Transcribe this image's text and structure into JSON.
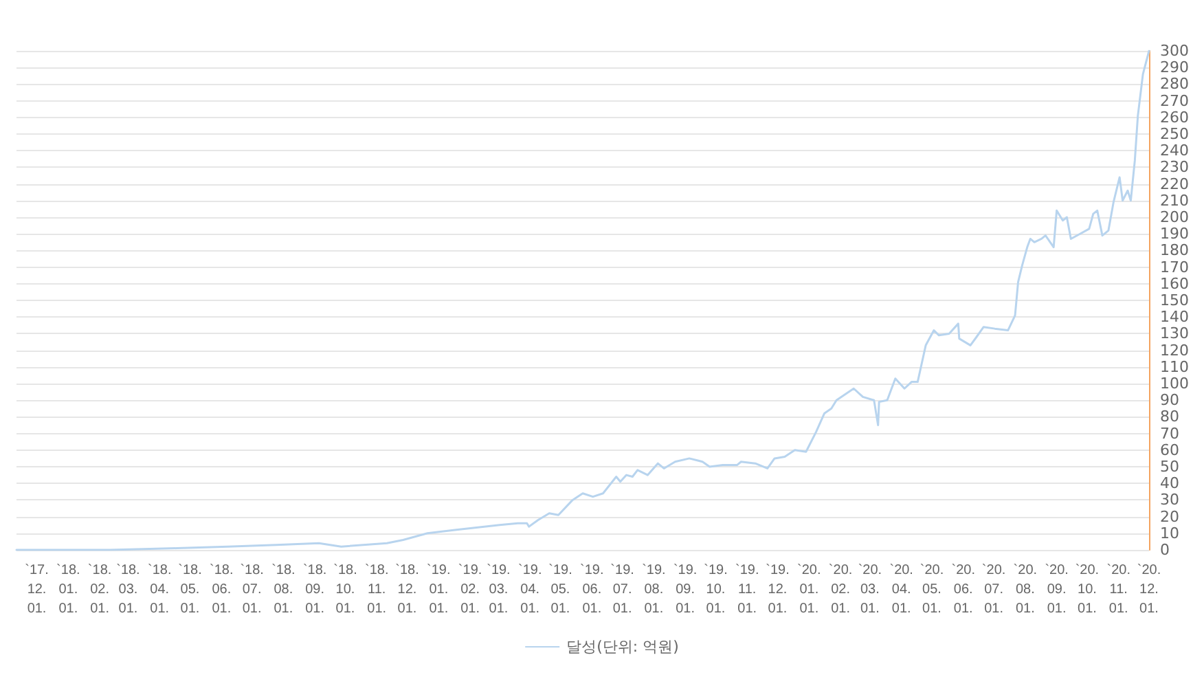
{
  "chart_data": {
    "type": "line",
    "legend": "bottom",
    "grid": "y",
    "marker": "none",
    "line_style": "solid",
    "xlim": [
      "2017-11-11",
      "2020-12-01"
    ],
    "xticks": [
      {
        "value": "2017-12-01",
        "label": "`17.\n12.\n01."
      },
      {
        "value": "2018-01-01",
        "label": "`18.\n01.\n01."
      },
      {
        "value": "2018-02-01",
        "label": "`18.\n02.\n01."
      },
      {
        "value": "2018-03-01",
        "label": "`18.\n03.\n01."
      },
      {
        "value": "2018-04-01",
        "label": "`18.\n04.\n01."
      },
      {
        "value": "2018-05-01",
        "label": "`18.\n05.\n01."
      },
      {
        "value": "2018-06-01",
        "label": "`18.\n06.\n01."
      },
      {
        "value": "2018-07-01",
        "label": "`18.\n07.\n01."
      },
      {
        "value": "2018-08-01",
        "label": "`18.\n08.\n01."
      },
      {
        "value": "2018-09-01",
        "label": "`18.\n09.\n01."
      },
      {
        "value": "2018-10-01",
        "label": "`18.\n10.\n01."
      },
      {
        "value": "2018-11-01",
        "label": "`18.\n11.\n01."
      },
      {
        "value": "2018-12-01",
        "label": "`18.\n12.\n01."
      },
      {
        "value": "2019-01-01",
        "label": "`19.\n01.\n01."
      },
      {
        "value": "2019-02-01",
        "label": "`19.\n02.\n01."
      },
      {
        "value": "2019-03-01",
        "label": "`19.\n03.\n01."
      },
      {
        "value": "2019-04-01",
        "label": "`19.\n04.\n01."
      },
      {
        "value": "2019-05-01",
        "label": "`19.\n05.\n01."
      },
      {
        "value": "2019-06-01",
        "label": "`19.\n06.\n01."
      },
      {
        "value": "2019-07-01",
        "label": "`19.\n07.\n01."
      },
      {
        "value": "2019-08-01",
        "label": "`19.\n08.\n01."
      },
      {
        "value": "2019-09-01",
        "label": "`19.\n09.\n01."
      },
      {
        "value": "2019-10-01",
        "label": "`19.\n10.\n01."
      },
      {
        "value": "2019-11-01",
        "label": "`19.\n11.\n01."
      },
      {
        "value": "2019-12-01",
        "label": "`19.\n12.\n01."
      },
      {
        "value": "2020-01-01",
        "label": "`20.\n01.\n01."
      },
      {
        "value": "2020-02-01",
        "label": "`20.\n02.\n01."
      },
      {
        "value": "2020-03-01",
        "label": "`20.\n03.\n01."
      },
      {
        "value": "2020-04-01",
        "label": "`20.\n04.\n01."
      },
      {
        "value": "2020-05-01",
        "label": "`20.\n05.\n01."
      },
      {
        "value": "2020-06-01",
        "label": "`20.\n06.\n01."
      },
      {
        "value": "2020-07-01",
        "label": "`20.\n07.\n01."
      },
      {
        "value": "2020-08-01",
        "label": "`20.\n08.\n01."
      },
      {
        "value": "2020-09-01",
        "label": "`20.\n09.\n01."
      },
      {
        "value": "2020-10-01",
        "label": "`20.\n10.\n01."
      },
      {
        "value": "2020-11-01",
        "label": "`20.\n11.\n01."
      },
      {
        "value": "2020-12-01",
        "label": "`20.\n12.\n01."
      }
    ],
    "ylim": [
      0,
      300
    ],
    "yticks": [
      0,
      10,
      20,
      30,
      40,
      50,
      60,
      70,
      80,
      90,
      100,
      110,
      120,
      130,
      140,
      150,
      160,
      170,
      180,
      190,
      200,
      210,
      220,
      230,
      240,
      250,
      260,
      270,
      280,
      290,
      300
    ],
    "x": [
      "2017-11-11",
      "2018-02-11",
      "2018-04-18",
      "2018-06-07",
      "2018-07-25",
      "2018-09-05",
      "2018-09-27",
      "2018-11-11",
      "2018-11-27",
      "2018-12-21",
      "2019-01-17",
      "2019-03-02",
      "2019-03-20",
      "2019-03-29",
      "2019-03-31",
      "2019-04-09",
      "2019-04-20",
      "2019-04-29",
      "2019-05-13",
      "2019-05-23",
      "2019-06-02",
      "2019-06-12",
      "2019-06-25",
      "2019-06-29",
      "2019-07-05",
      "2019-07-11",
      "2019-07-16",
      "2019-07-26",
      "2019-08-05",
      "2019-08-11",
      "2019-08-22",
      "2019-09-05",
      "2019-09-18",
      "2019-09-25",
      "2019-10-08",
      "2019-10-22",
      "2019-10-26",
      "2019-11-09",
      "2019-11-21",
      "2019-11-28",
      "2019-12-08",
      "2019-12-18",
      "2019-12-29",
      "2020-01-08",
      "2020-01-16",
      "2020-01-23",
      "2020-01-28",
      "2020-02-14",
      "2020-02-23",
      "2020-03-05",
      "2020-03-09",
      "2020-03-10",
      "2020-03-18",
      "2020-03-26",
      "2020-04-04",
      "2020-04-11",
      "2020-04-17",
      "2020-04-25",
      "2020-05-03",
      "2020-05-08",
      "2020-05-18",
      "2020-05-27",
      "2020-05-28",
      "2020-06-08",
      "2020-06-14",
      "2020-06-21",
      "2020-07-02",
      "2020-07-15",
      "2020-07-22",
      "2020-07-25",
      "2020-07-29",
      "2020-08-03",
      "2020-08-06",
      "2020-08-10",
      "2020-08-17",
      "2020-08-21",
      "2020-08-29",
      "2020-09-01",
      "2020-09-07",
      "2020-09-11",
      "2020-09-15",
      "2020-09-24",
      "2020-10-03",
      "2020-10-07",
      "2020-10-11",
      "2020-10-16",
      "2020-10-22",
      "2020-10-27",
      "2020-11-02",
      "2020-11-05",
      "2020-11-10",
      "2020-11-13",
      "2020-11-17",
      "2020-11-20",
      "2020-11-25",
      "2020-12-01"
    ],
    "series": [
      {
        "name": "달성(단위: 억원)",
        "color": "#b8d4ee",
        "values": [
          0,
          0,
          1,
          2,
          3,
          4,
          2,
          4,
          6,
          10,
          12,
          15,
          16,
          16,
          14,
          18,
          22,
          21,
          30,
          34,
          32,
          34,
          44,
          41,
          45,
          44,
          48,
          45,
          52,
          49,
          53,
          55,
          53,
          50,
          51,
          51,
          53,
          52,
          49,
          55,
          56,
          60,
          59,
          71,
          82,
          85,
          90,
          97,
          92,
          90,
          75,
          89,
          90,
          103,
          97,
          101,
          101,
          123,
          132,
          129,
          130,
          136,
          127,
          123,
          128,
          134,
          133,
          132,
          141,
          161,
          171,
          182,
          187,
          185,
          187,
          189,
          182,
          204,
          198,
          200,
          187,
          190,
          193,
          202,
          204,
          189,
          192,
          209,
          224,
          210,
          216,
          210,
          234,
          261,
          286,
          300
        ]
      }
    ]
  }
}
